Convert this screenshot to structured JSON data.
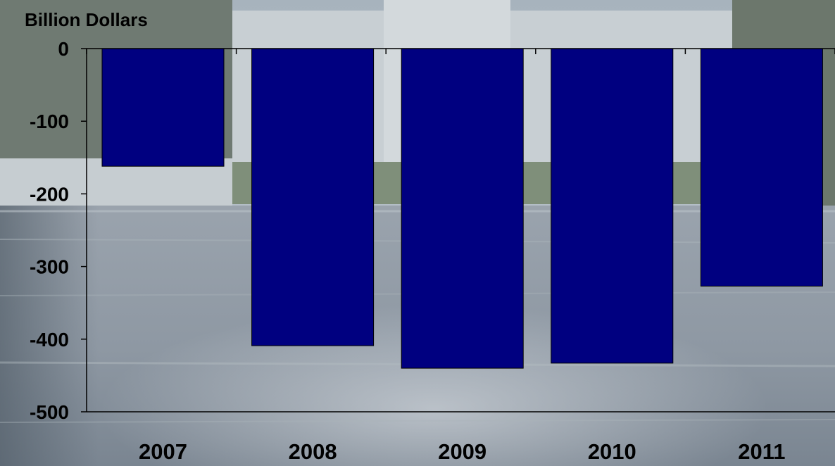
{
  "chart_data": {
    "type": "bar",
    "title": "",
    "xlabel": "",
    "ylabel": "Billion Dollars",
    "categories": [
      "2007",
      "2008",
      "2009",
      "2010",
      "2011"
    ],
    "values": [
      -162,
      -409,
      -440,
      -433,
      -327
    ],
    "ylim": [
      -500,
      0
    ],
    "yticks": [
      0,
      -100,
      -200,
      -300,
      -400,
      -500
    ],
    "grid": false,
    "bar_color": "#000080",
    "axis_color": "#000000"
  }
}
